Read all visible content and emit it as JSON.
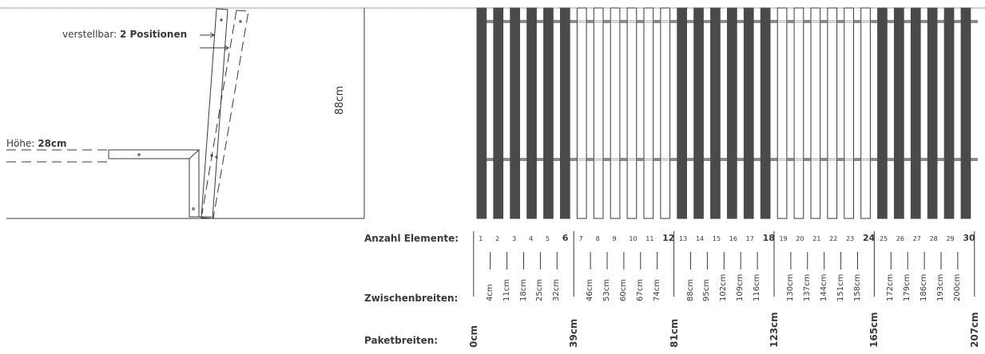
{
  "left": {
    "adjust_label": "verstellbar: ",
    "adjust_value": "2 Positionen",
    "height_label": "Höhe: ",
    "height_value": "28cm"
  },
  "middle": {
    "total_height": "88cm"
  },
  "labels": {
    "anzahl": "Anzahl Elemente:",
    "zwischen": "Zwischenbreiten:",
    "paket": "Paketbreiten:"
  },
  "element_numbers": [
    "1",
    "2",
    "3",
    "4",
    "5",
    "6",
    "7",
    "8",
    "9",
    "10",
    "11",
    "12",
    "13",
    "14",
    "15",
    "16",
    "17",
    "18",
    "19",
    "20",
    "21",
    "22",
    "23",
    "24",
    "25",
    "26",
    "27",
    "28",
    "29",
    "30"
  ],
  "zwischenbreiten": [
    "4cm",
    "11cm",
    "18cm",
    "25cm",
    "32cm",
    "46cm",
    "53cm",
    "60cm",
    "67cm",
    "74cm",
    "88cm",
    "95cm",
    "102cm",
    "109cm",
    "116cm",
    "130cm",
    "137cm",
    "144cm",
    "151cm",
    "158cm",
    "172cm",
    "179cm",
    "186cm",
    "193cm",
    "200cm"
  ],
  "paketbreiten": [
    "0cm",
    "39cm",
    "81cm",
    "123cm",
    "165cm",
    "207cm"
  ],
  "colors": {
    "dark_slat": "#4a4a4c",
    "light_slat": "#ffffff",
    "rail": "#8a8a8a",
    "line": "#3a3a3a"
  }
}
